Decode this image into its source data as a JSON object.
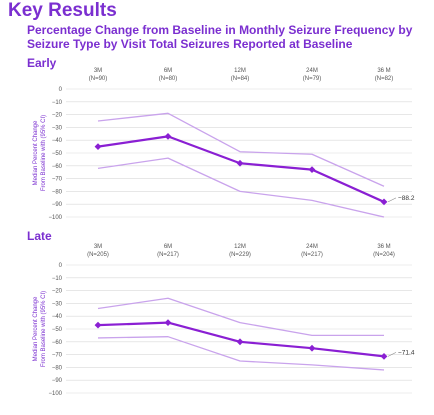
{
  "header": {
    "title": "Key Results",
    "subtitle": "Percentage Change from Baseline in Monthly Seizure Frequency by Seizure Type by Visit Total Seizures Reported at Baseline"
  },
  "colors": {
    "accent": "#7b2fd0",
    "median": "#8a1fd3",
    "ci": "#c9a3ec",
    "grid": "#d9d9d9",
    "axis_text": "#555555"
  },
  "chart_data": [
    {
      "type": "line",
      "section": "Early",
      "categories": [
        "3M",
        "6M",
        "12M",
        "24M",
        "36 M"
      ],
      "category_n": [
        "(N=90)",
        "(N=80)",
        "(N=84)",
        "(N=79)",
        "(N=82)"
      ],
      "ylabel_line1": "Median Percent Change",
      "ylabel_line2": "From Baseline with (95% CI)",
      "yticks": [
        0,
        -10,
        -20,
        -30,
        -40,
        -50,
        -60,
        -70,
        -80,
        -90,
        -100
      ],
      "ylim": [
        -100,
        0
      ],
      "series": [
        {
          "role": "upper",
          "values": [
            -25,
            -19,
            -49,
            -51,
            -76
          ]
        },
        {
          "role": "median",
          "values": [
            -45,
            -37,
            -58,
            -63,
            -88.2
          ]
        },
        {
          "role": "lower",
          "values": [
            -62,
            -54,
            -80,
            -87,
            -100
          ]
        }
      ],
      "end_label": "−88.2"
    },
    {
      "type": "line",
      "section": "Late",
      "categories": [
        "3M",
        "6M",
        "12M",
        "24M",
        "36 M"
      ],
      "category_n": [
        "(N=205)",
        "(N=217)",
        "(N=229)",
        "(N=217)",
        "(N=204)"
      ],
      "ylabel_line1": "Median Percent Change",
      "ylabel_line2": "From Baseline with (95% CI)",
      "yticks": [
        0,
        -10,
        -20,
        -30,
        -40,
        -50,
        -60,
        -70,
        -80,
        -90,
        -100
      ],
      "ylim": [
        -100,
        0
      ],
      "series": [
        {
          "role": "upper",
          "values": [
            -34,
            -26,
            -45,
            -55,
            -55
          ]
        },
        {
          "role": "median",
          "values": [
            -47,
            -45,
            -60,
            -65,
            -71.4
          ]
        },
        {
          "role": "lower",
          "values": [
            -57,
            -56,
            -75,
            -78,
            -82
          ]
        }
      ],
      "end_label": "−71.4"
    }
  ]
}
